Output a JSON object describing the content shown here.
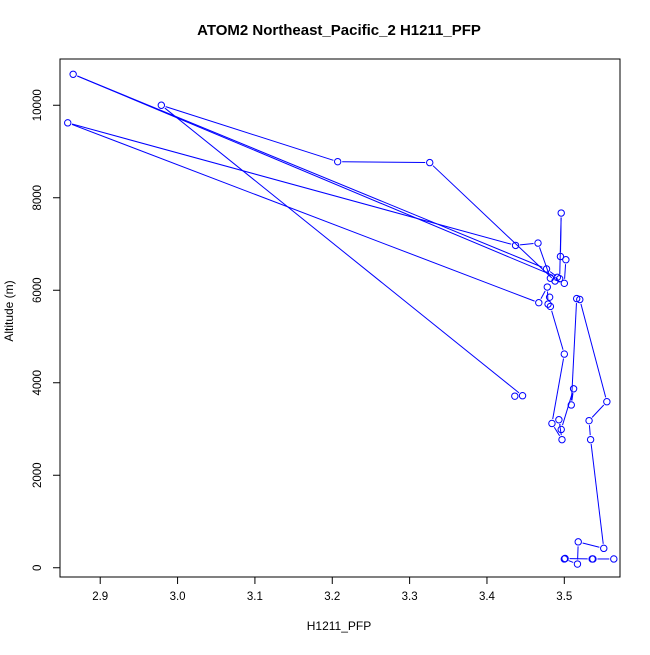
{
  "chart_data": {
    "type": "line",
    "title": "ATOM2 Northeast_Pacific_2 H1211_PFP",
    "xlabel": "H1211_PFP",
    "ylabel": "Altitude (m)",
    "xlim": [
      2.848,
      3.572
    ],
    "ylim": [
      -200,
      11000
    ],
    "xticks": [
      2.9,
      3.0,
      3.1,
      3.2,
      3.3,
      3.4,
      3.5
    ],
    "xtick_labels": [
      "2.9",
      "3.0",
      "3.1",
      "3.2",
      "3.3",
      "3.4",
      "3.5"
    ],
    "yticks": [
      0,
      2000,
      4000,
      6000,
      8000,
      10000
    ],
    "ytick_labels": [
      "0",
      "2000",
      "4000",
      "6000",
      "8000",
      "10000"
    ],
    "grid": false,
    "series": [
      {
        "color": "#0000ff",
        "marker": "open-circle",
        "points": [
          [
            3.564,
            190
          ],
          [
            3.537,
            190
          ],
          [
            3.536,
            190
          ],
          [
            3.501,
            200
          ],
          [
            3.5,
            190
          ],
          [
            3.517,
            80
          ],
          [
            3.518,
            560
          ],
          [
            3.551,
            420
          ],
          [
            3.534,
            2770
          ],
          [
            3.532,
            3180
          ],
          [
            3.555,
            3590
          ],
          [
            3.52,
            5800
          ],
          [
            3.516,
            5820
          ],
          [
            3.509,
            3520
          ],
          [
            3.512,
            3870
          ],
          [
            3.496,
            2990
          ],
          [
            3.493,
            3200
          ],
          [
            3.497,
            2770
          ],
          [
            3.484,
            3120
          ],
          [
            3.5,
            4620
          ],
          [
            3.482,
            5650
          ],
          [
            3.481,
            5850
          ],
          [
            3.479,
            5700
          ],
          [
            3.478,
            6070
          ],
          [
            3.467,
            5730
          ],
          [
            2.858,
            9620
          ],
          [
            3.437,
            6970
          ],
          [
            3.466,
            7020
          ],
          [
            3.482,
            6260
          ],
          [
            3.5,
            6150
          ],
          [
            3.502,
            6660
          ],
          [
            3.495,
            6730
          ],
          [
            3.496,
            7670
          ],
          [
            3.494,
            6250
          ],
          [
            3.477,
            6460
          ],
          [
            2.865,
            10670
          ],
          [
            3.491,
            6280
          ],
          [
            3.488,
            6200
          ],
          [
            3.326,
            8760
          ],
          [
            3.207,
            8780
          ],
          [
            2.979,
            10000
          ],
          [
            3.446,
            3720
          ],
          [
            3.436,
            3710
          ]
        ]
      }
    ]
  }
}
